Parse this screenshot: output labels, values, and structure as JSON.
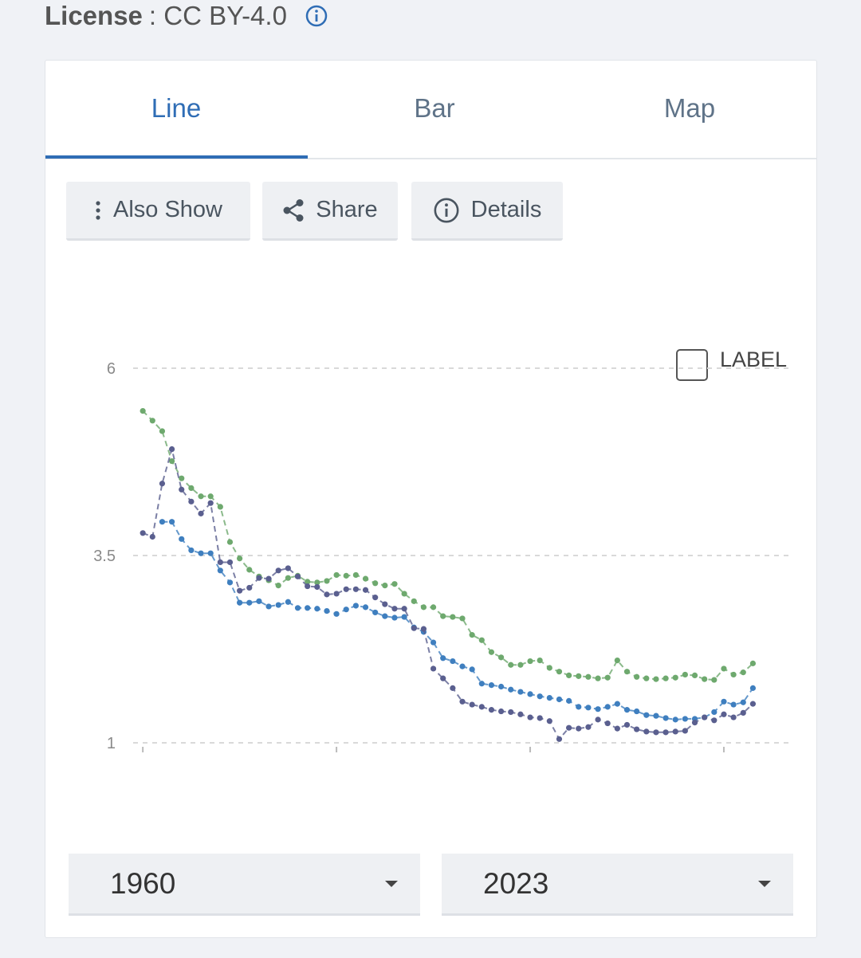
{
  "license": {
    "label": "License",
    "value": ": CC BY-4.0"
  },
  "tabs": [
    "Line",
    "Bar",
    "Map"
  ],
  "buttons": [
    "Also Show",
    "Share",
    "Details"
  ],
  "label_toggle": "LABEL",
  "range": {
    "start": "1960",
    "end": "2023"
  },
  "chart_data": {
    "type": "line",
    "x": [
      1960,
      1961,
      1962,
      1963,
      1964,
      1965,
      1966,
      1967,
      1968,
      1969,
      1970,
      1971,
      1972,
      1973,
      1974,
      1975,
      1976,
      1977,
      1978,
      1979,
      1980,
      1981,
      1982,
      1983,
      1984,
      1985,
      1986,
      1987,
      1988,
      1989,
      1990,
      1991,
      1992,
      1993,
      1994,
      1995,
      1996,
      1997,
      1998,
      1999,
      2000,
      2001,
      2002,
      2003,
      2004,
      2005,
      2006,
      2007,
      2008,
      2009,
      2010,
      2011,
      2012,
      2013,
      2014,
      2015,
      2016,
      2017,
      2018,
      2019,
      2020,
      2021,
      2022,
      2023
    ],
    "series": [
      {
        "color": "#6ea96e",
        "values": [
          5.43,
          5.3,
          5.16,
          4.76,
          4.53,
          4.4,
          4.29,
          4.29,
          4.15,
          3.68,
          3.46,
          3.31,
          3.22,
          3.17,
          3.1,
          3.2,
          3.23,
          3.15,
          3.14,
          3.16,
          3.24,
          3.23,
          3.24,
          3.19,
          3.13,
          3.1,
          3.12,
          2.99,
          2.89,
          2.81,
          2.81,
          2.69,
          2.68,
          2.66,
          2.44,
          2.37,
          2.21,
          2.14,
          2.04,
          2.04,
          2.09,
          2.1,
          2.0,
          1.95,
          1.9,
          1.89,
          1.88,
          1.86,
          1.87,
          2.1,
          1.95,
          1.88,
          1.86,
          1.85,
          1.86,
          1.87,
          1.91,
          1.9,
          1.85,
          1.84,
          1.99,
          1.91,
          1.94,
          2.06
        ]
      },
      {
        "color": "#3f7fbf",
        "values": [
          null,
          null,
          3.95,
          3.95,
          3.72,
          3.57,
          3.53,
          3.53,
          3.3,
          3.14,
          2.87,
          2.87,
          2.89,
          2.82,
          2.84,
          2.88,
          2.8,
          2.8,
          2.79,
          2.76,
          2.72,
          2.78,
          2.83,
          2.81,
          2.74,
          2.69,
          2.67,
          2.68,
          2.54,
          2.48,
          2.34,
          2.13,
          2.09,
          2.02,
          1.98,
          1.79,
          1.77,
          1.75,
          1.71,
          1.68,
          1.65,
          1.62,
          1.6,
          1.58,
          1.56,
          1.48,
          1.47,
          1.45,
          1.48,
          1.52,
          1.44,
          1.42,
          1.37,
          1.36,
          1.33,
          1.31,
          1.32,
          1.32,
          1.34,
          1.41,
          1.55,
          1.51,
          1.54,
          1.73
        ]
      },
      {
        "color": "#5a5f8f",
        "values": [
          3.8,
          3.75,
          4.46,
          4.92,
          4.38,
          4.22,
          4.06,
          4.2,
          3.41,
          3.41,
          3.03,
          3.07,
          3.2,
          3.19,
          3.3,
          3.33,
          3.22,
          3.09,
          3.08,
          2.98,
          2.99,
          3.05,
          3.05,
          3.04,
          2.94,
          2.85,
          2.79,
          2.79,
          2.53,
          2.52,
          1.99,
          1.86,
          1.73,
          1.55,
          1.51,
          1.48,
          1.44,
          1.42,
          1.41,
          1.38,
          1.34,
          1.33,
          1.29,
          1.05,
          1.2,
          1.19,
          1.21,
          1.31,
          1.26,
          1.19,
          1.24,
          1.18,
          1.15,
          1.14,
          1.14,
          1.15,
          1.16,
          1.27,
          1.34,
          1.3,
          1.38,
          1.34,
          1.4,
          1.52
        ]
      }
    ],
    "xlim": [
      1959,
      2027
    ],
    "xticks": [
      1960,
      1980,
      2000,
      2020
    ],
    "ylim": [
      1,
      6
    ],
    "yticks": [
      1,
      3.5,
      6
    ],
    "grid": true
  }
}
